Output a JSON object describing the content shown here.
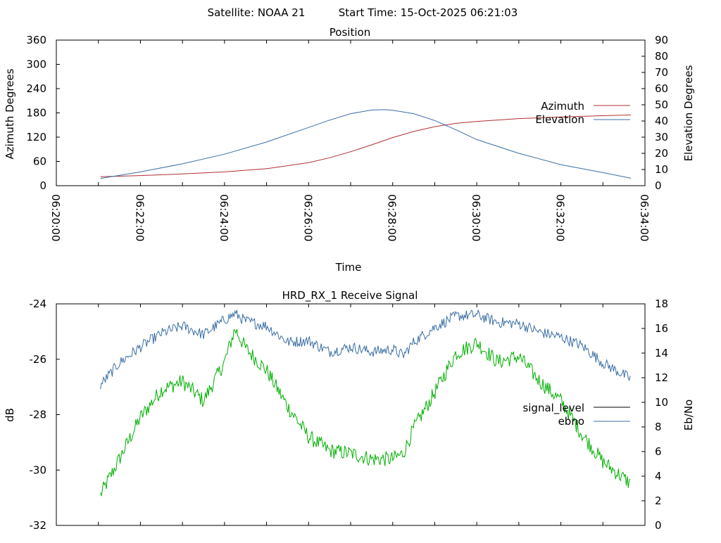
{
  "header": {
    "satellite_text": "Satellite: NOAA 21",
    "start_time_text": "Start Time: 15-Oct-2025 06:21:03"
  },
  "chart_data": [
    {
      "type": "line",
      "title": "Position",
      "xlabel": "Time",
      "ylabel": "Azimuth Degrees",
      "y2label": "Elevation Degrees",
      "x_ticks": [
        "06:20:00",
        "06:22:00",
        "06:24:00",
        "06:26:00",
        "06:28:00",
        "06:30:00",
        "06:32:00",
        "06:34:00"
      ],
      "y_ticks": [
        "0",
        "60",
        "120",
        "180",
        "240",
        "300",
        "360"
      ],
      "y2_ticks": [
        "0",
        "10",
        "20",
        "30",
        "40",
        "50",
        "60",
        "70",
        "80",
        "90"
      ],
      "xlim": [
        "06:20:00",
        "06:34:00"
      ],
      "ylim": [
        0,
        360
      ],
      "y2lim": [
        0,
        90
      ],
      "legend_position": "right",
      "series": [
        {
          "name": "Azimuth",
          "axis": "left",
          "color": "#b03030",
          "x": [
            "06:21:03",
            "06:22:00",
            "06:23:00",
            "06:24:00",
            "06:25:00",
            "06:26:00",
            "06:26:30",
            "06:27:00",
            "06:27:30",
            "06:28:00",
            "06:28:30",
            "06:29:00",
            "06:29:30",
            "06:30:00",
            "06:31:00",
            "06:32:00",
            "06:33:00",
            "06:33:40"
          ],
          "values": [
            22,
            25,
            29,
            34,
            42,
            57,
            69,
            84,
            101,
            119,
            134,
            146,
            154,
            159,
            166,
            170,
            173,
            175
          ]
        },
        {
          "name": "Elevation",
          "axis": "right",
          "color": "#3a6ea5",
          "x": [
            "06:21:03",
            "06:22:00",
            "06:23:00",
            "06:24:00",
            "06:25:00",
            "06:26:00",
            "06:26:30",
            "06:27:00",
            "06:27:30",
            "06:27:48",
            "06:28:00",
            "06:28:30",
            "06:29:00",
            "06:29:30",
            "06:30:00",
            "06:31:00",
            "06:32:00",
            "06:33:00",
            "06:33:40"
          ],
          "values": [
            4.5,
            8.5,
            13.5,
            19.5,
            27,
            36,
            40.5,
            44.5,
            46.8,
            47,
            46.6,
            44.5,
            40.3,
            34.6,
            28.5,
            20,
            13,
            8.1,
            4.6
          ]
        }
      ]
    },
    {
      "type": "line",
      "title": "HRD_RX_1 Receive Signal",
      "ylabel": "dB",
      "y2label": "Eb/No",
      "y_ticks": [
        "-24",
        "-26",
        "-28",
        "-30",
        "-32"
      ],
      "y2_ticks": [
        "0",
        "2",
        "4",
        "6",
        "8",
        "10",
        "12",
        "14",
        "16",
        "18"
      ],
      "xlim": [
        "06:20:00",
        "06:34:00"
      ],
      "ylim": [
        -32,
        -24
      ],
      "y2lim": [
        0,
        18
      ],
      "legend_position": "right",
      "series": [
        {
          "name": "signal_level",
          "axis": "left",
          "color": "#00b000",
          "x": [
            "06:21:03",
            "06:21:30",
            "06:22:00",
            "06:22:30",
            "06:23:00",
            "06:23:30",
            "06:24:00",
            "06:24:15",
            "06:24:30",
            "06:25:00",
            "06:25:30",
            "06:26:00",
            "06:26:30",
            "06:27:00",
            "06:27:30",
            "06:28:00",
            "06:28:15",
            "06:28:30",
            "06:29:00",
            "06:29:30",
            "06:30:00",
            "06:30:30",
            "06:31:00",
            "06:31:30",
            "06:32:00",
            "06:32:30",
            "06:33:00",
            "06:33:40"
          ],
          "values": [
            -30.9,
            -29.6,
            -28.1,
            -27.1,
            -26.8,
            -27.5,
            -26.1,
            -24.9,
            -25.6,
            -26.4,
            -27.7,
            -28.8,
            -29.3,
            -29.4,
            -29.6,
            -29.6,
            -29.4,
            -28.5,
            -27.2,
            -25.8,
            -25.4,
            -26.1,
            -25.9,
            -26.8,
            -27.5,
            -28.7,
            -29.7,
            -30.5
          ]
        },
        {
          "name": "ebno",
          "axis": "right",
          "color": "#3a6ea5",
          "x": [
            "06:21:03",
            "06:21:30",
            "06:22:00",
            "06:22:30",
            "06:23:00",
            "06:23:30",
            "06:24:00",
            "06:24:15",
            "06:24:30",
            "06:25:00",
            "06:25:30",
            "06:26:00",
            "06:26:30",
            "06:27:00",
            "06:27:30",
            "06:28:00",
            "06:28:15",
            "06:28:30",
            "06:29:00",
            "06:29:30",
            "06:30:00",
            "06:30:30",
            "06:31:00",
            "06:31:30",
            "06:32:00",
            "06:32:30",
            "06:33:00",
            "06:33:40"
          ],
          "values": [
            11.4,
            13.2,
            14.5,
            15.6,
            16.2,
            15.5,
            16.7,
            17.2,
            16.6,
            16.2,
            14.9,
            15.0,
            14.1,
            14.5,
            14.1,
            14.3,
            13.8,
            14.9,
            16.1,
            17.0,
            17.1,
            16.5,
            16.4,
            15.7,
            15.3,
            14.6,
            13.2,
            11.9
          ]
        },
        {
          "name": "signal_level",
          "axis": "left",
          "color": "#000000",
          "legend_only": true
        }
      ]
    }
  ]
}
